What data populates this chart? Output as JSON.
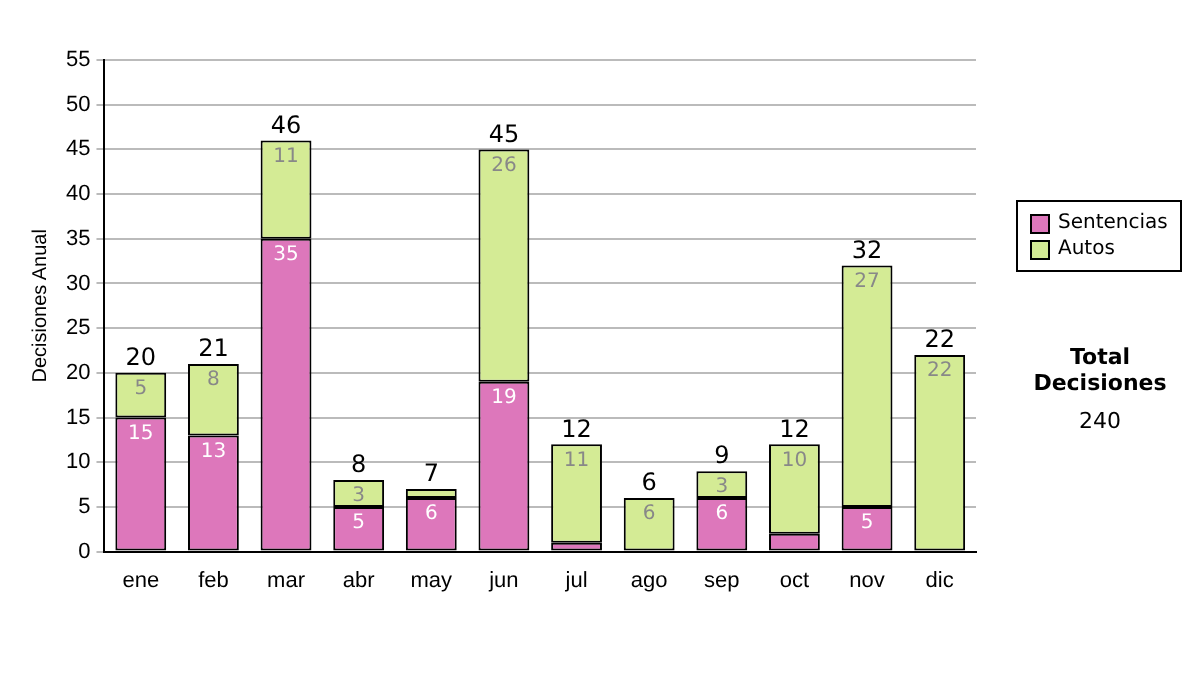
{
  "chart_data": {
    "type": "bar",
    "stacked": true,
    "ylabel": "Decisiones Anual",
    "categories": [
      "ene",
      "feb",
      "mar",
      "abr",
      "may",
      "jun",
      "jul",
      "ago",
      "sep",
      "oct",
      "nov",
      "dic"
    ],
    "series": [
      {
        "name": "Sentencias",
        "color": "#dd77bb",
        "values": [
          15,
          13,
          35,
          5,
          6,
          19,
          1,
          0,
          6,
          2,
          5,
          0
        ],
        "value_labels": [
          "15",
          "13",
          "35",
          "5",
          "6",
          "19",
          null,
          null,
          "6",
          null,
          "5",
          null
        ]
      },
      {
        "name": "Autos",
        "color": "#d4eb95",
        "values": [
          5,
          8,
          11,
          3,
          1,
          26,
          11,
          6,
          3,
          10,
          27,
          22
        ],
        "value_labels": [
          "5",
          "8",
          "11",
          "3",
          null,
          "26",
          "11",
          "6",
          "3",
          "10",
          "27",
          "22"
        ]
      }
    ],
    "totals": [
      "20",
      "21",
      "46",
      "8",
      "7",
      "45",
      "12",
      "6",
      "9",
      "12",
      "32",
      "22"
    ],
    "ylim": [
      0,
      55
    ],
    "yticks": [
      0,
      5,
      10,
      15,
      20,
      25,
      30,
      35,
      40,
      45,
      50,
      55
    ],
    "grid": "y",
    "legend": "right",
    "annotations": [
      "Total Decisiones",
      "240"
    ]
  }
}
